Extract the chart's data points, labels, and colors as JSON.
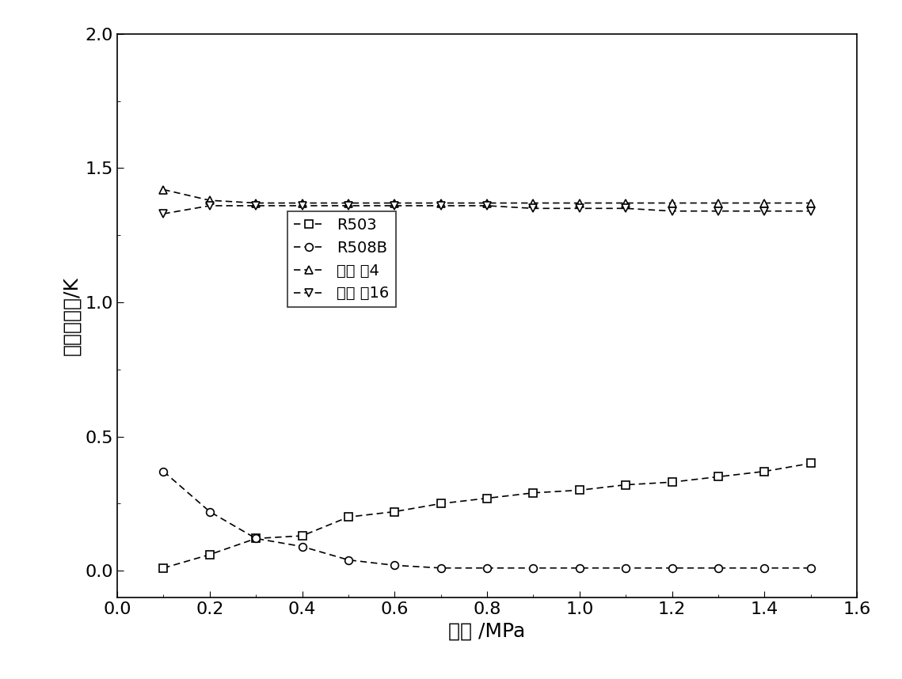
{
  "title": "",
  "xlabel": "压力 /MPa",
  "ylabel": "泡露点温差/K",
  "xlim": [
    0.0,
    1.6
  ],
  "ylim": [
    -0.1,
    2.0
  ],
  "xticks": [
    0.0,
    0.2,
    0.4,
    0.6,
    0.8,
    1.0,
    1.2,
    1.4,
    1.6
  ],
  "yticks": [
    0.0,
    0.5,
    1.0,
    1.5,
    2.0
  ],
  "series": [
    {
      "label": "R503",
      "marker": "s",
      "linestyle": "--",
      "color": "#000000",
      "x": [
        0.1,
        0.2,
        0.3,
        0.4,
        0.5,
        0.6,
        0.7,
        0.8,
        0.9,
        1.0,
        1.1,
        1.2,
        1.3,
        1.4,
        1.5
      ],
      "y": [
        0.01,
        0.06,
        0.12,
        0.13,
        0.2,
        0.22,
        0.25,
        0.27,
        0.29,
        0.3,
        0.32,
        0.33,
        0.35,
        0.37,
        0.4
      ]
    },
    {
      "label": "R508B",
      "marker": "o",
      "linestyle": "--",
      "color": "#000000",
      "x": [
        0.1,
        0.2,
        0.3,
        0.4,
        0.5,
        0.6,
        0.7,
        0.8,
        0.9,
        1.0,
        1.1,
        1.2,
        1.3,
        1.4,
        1.5
      ],
      "y": [
        0.37,
        0.22,
        0.12,
        0.09,
        0.04,
        0.02,
        0.01,
        0.01,
        0.01,
        0.01,
        0.01,
        0.01,
        0.01,
        0.01,
        0.01
      ]
    },
    {
      "label": "实施 例4",
      "marker": "^",
      "linestyle": "--",
      "color": "#000000",
      "x": [
        0.1,
        0.2,
        0.3,
        0.4,
        0.5,
        0.6,
        0.7,
        0.8,
        0.9,
        1.0,
        1.1,
        1.2,
        1.3,
        1.4,
        1.5
      ],
      "y": [
        1.42,
        1.38,
        1.37,
        1.37,
        1.37,
        1.37,
        1.37,
        1.37,
        1.37,
        1.37,
        1.37,
        1.37,
        1.37,
        1.37,
        1.37
      ]
    },
    {
      "label": "实施 例16",
      "marker": "v",
      "linestyle": "--",
      "color": "#000000",
      "x": [
        0.1,
        0.2,
        0.3,
        0.4,
        0.5,
        0.6,
        0.7,
        0.8,
        0.9,
        1.0,
        1.1,
        1.2,
        1.3,
        1.4,
        1.5
      ],
      "y": [
        1.33,
        1.36,
        1.36,
        1.36,
        1.36,
        1.36,
        1.36,
        1.36,
        1.35,
        1.35,
        1.35,
        1.34,
        1.34,
        1.34,
        1.34
      ]
    }
  ],
  "background_color": "#ffffff",
  "marker_size": 7,
  "linewidth": 1.2,
  "font_size_label": 18,
  "font_size_tick": 16,
  "font_size_legend": 14
}
